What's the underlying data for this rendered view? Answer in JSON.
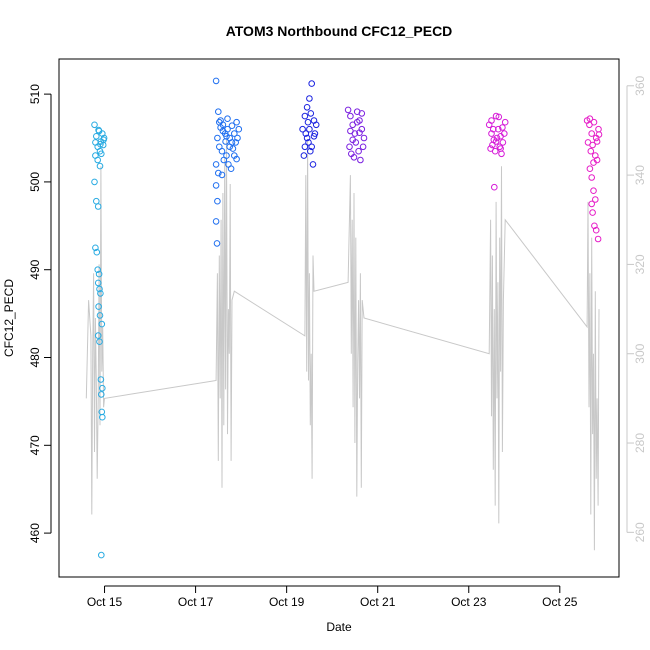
{
  "chart_data": {
    "type": "scatter",
    "title": "ATOM3 Northbound CFC12_PECD",
    "xlabel": "Date",
    "ylabel": "CFC12_PECD",
    "x_ticks": [
      "Oct 15",
      "Oct 17",
      "Oct 19",
      "Oct 21",
      "Oct 23",
      "Oct 25"
    ],
    "y_ticks": [
      460,
      470,
      480,
      490,
      500,
      510
    ],
    "y2_ticks": [
      260,
      280,
      300,
      320,
      340,
      360
    ],
    "xlim_days": [
      14.0,
      26.3
    ],
    "ylim": [
      455,
      514
    ],
    "y2lim": [
      250,
      366
    ],
    "colors": {
      "secondary_line": "#c8c8c8",
      "secondary_axis": "#c8c8c8"
    },
    "series": [
      {
        "color": "#29abe2",
        "points": [
          [
            14.78,
            506.5
          ],
          [
            14.8,
            504.5
          ],
          [
            14.82,
            505.2
          ],
          [
            14.85,
            504.0
          ],
          [
            14.88,
            505.8
          ],
          [
            14.9,
            503.5
          ],
          [
            14.92,
            504.6
          ],
          [
            14.95,
            505.5
          ],
          [
            14.97,
            504.2
          ],
          [
            14.8,
            503.0
          ],
          [
            14.85,
            502.5
          ],
          [
            14.9,
            501.8
          ],
          [
            14.93,
            503.2
          ],
          [
            14.78,
            500.0
          ],
          [
            14.82,
            497.8
          ],
          [
            14.86,
            497.2
          ],
          [
            14.8,
            492.5
          ],
          [
            14.83,
            492.0
          ],
          [
            14.85,
            490.0
          ],
          [
            14.88,
            489.5
          ],
          [
            14.86,
            488.5
          ],
          [
            14.89,
            487.8
          ],
          [
            14.91,
            487.3
          ],
          [
            14.87,
            485.8
          ],
          [
            14.9,
            484.8
          ],
          [
            14.94,
            483.8
          ],
          [
            14.86,
            482.5
          ],
          [
            14.89,
            481.8
          ],
          [
            14.92,
            477.5
          ],
          [
            14.95,
            476.5
          ],
          [
            14.93,
            475.8
          ],
          [
            14.94,
            473.8
          ],
          [
            14.95,
            473.2
          ],
          [
            14.93,
            457.5
          ],
          [
            14.98,
            504.8
          ],
          [
            14.99,
            505.0
          ],
          [
            14.87,
            505.9
          ],
          [
            14.91,
            504.3
          ]
        ]
      },
      {
        "color": "#1f6ff0",
        "points": [
          [
            17.45,
            511.5
          ],
          [
            17.5,
            508.0
          ],
          [
            17.55,
            507.0
          ],
          [
            17.6,
            506.5
          ],
          [
            17.65,
            505.5
          ],
          [
            17.7,
            506.0
          ],
          [
            17.75,
            505.0
          ],
          [
            17.8,
            504.5
          ],
          [
            17.85,
            505.5
          ],
          [
            17.9,
            506.8
          ],
          [
            17.95,
            506.0
          ],
          [
            17.48,
            505.0
          ],
          [
            17.52,
            504.0
          ],
          [
            17.58,
            503.5
          ],
          [
            17.62,
            502.5
          ],
          [
            17.68,
            503.0
          ],
          [
            17.72,
            502.0
          ],
          [
            17.78,
            501.5
          ],
          [
            17.82,
            503.8
          ],
          [
            17.88,
            504.5
          ],
          [
            17.45,
            502.0
          ],
          [
            17.5,
            501.0
          ],
          [
            17.45,
            499.6
          ],
          [
            17.48,
            497.8
          ],
          [
            17.45,
            495.5
          ],
          [
            17.47,
            493.0
          ],
          [
            17.55,
            506.2
          ],
          [
            17.7,
            507.2
          ],
          [
            17.85,
            503.0
          ],
          [
            17.92,
            505.0
          ],
          [
            17.6,
            505.8
          ],
          [
            17.75,
            504.0
          ],
          [
            17.52,
            506.8
          ],
          [
            17.66,
            504.6
          ],
          [
            17.8,
            506.4
          ],
          [
            17.9,
            502.6
          ],
          [
            17.58,
            500.8
          ],
          [
            17.68,
            505.2
          ]
        ]
      },
      {
        "color": "#1a22e0",
        "points": [
          [
            19.35,
            506.0
          ],
          [
            19.4,
            507.5
          ],
          [
            19.45,
            508.5
          ],
          [
            19.5,
            509.5
          ],
          [
            19.55,
            511.2
          ],
          [
            19.6,
            507.0
          ],
          [
            19.65,
            506.5
          ],
          [
            19.42,
            505.5
          ],
          [
            19.48,
            504.5
          ],
          [
            19.52,
            503.5
          ],
          [
            19.58,
            502.0
          ],
          [
            19.38,
            503.0
          ],
          [
            19.45,
            505.0
          ],
          [
            19.5,
            506.0
          ],
          [
            19.55,
            504.0
          ],
          [
            19.62,
            505.5
          ],
          [
            19.4,
            504.0
          ],
          [
            19.47,
            506.8
          ],
          [
            19.53,
            507.8
          ],
          [
            19.6,
            505.2
          ]
        ]
      },
      {
        "color": "#7a1fe0",
        "points": [
          [
            20.35,
            508.2
          ],
          [
            20.4,
            507.5
          ],
          [
            20.45,
            506.5
          ],
          [
            20.5,
            505.5
          ],
          [
            20.55,
            508.0
          ],
          [
            20.6,
            507.0
          ],
          [
            20.65,
            506.0
          ],
          [
            20.7,
            505.0
          ],
          [
            20.38,
            504.0
          ],
          [
            20.42,
            503.2
          ],
          [
            20.48,
            502.8
          ],
          [
            20.52,
            504.5
          ],
          [
            20.58,
            503.5
          ],
          [
            20.62,
            502.5
          ],
          [
            20.68,
            504.0
          ],
          [
            20.4,
            505.8
          ],
          [
            20.55,
            506.8
          ],
          [
            20.65,
            507.8
          ],
          [
            20.45,
            504.8
          ],
          [
            20.6,
            505.6
          ]
        ]
      },
      {
        "color": "#d61ad8",
        "points": [
          [
            23.45,
            506.5
          ],
          [
            23.5,
            505.5
          ],
          [
            23.55,
            504.8
          ],
          [
            23.6,
            507.5
          ],
          [
            23.65,
            506.0
          ],
          [
            23.7,
            505.2
          ],
          [
            23.75,
            504.5
          ],
          [
            23.8,
            506.8
          ],
          [
            23.48,
            503.8
          ],
          [
            23.52,
            504.2
          ],
          [
            23.58,
            503.5
          ],
          [
            23.62,
            505.0
          ],
          [
            23.68,
            504.0
          ],
          [
            23.72,
            503.2
          ],
          [
            23.78,
            505.5
          ],
          [
            23.56,
            499.4
          ],
          [
            23.5,
            507.0
          ],
          [
            23.66,
            507.4
          ],
          [
            23.74,
            506.2
          ],
          [
            23.6,
            504.6
          ],
          [
            23.54,
            506.0
          ],
          [
            23.7,
            503.8
          ]
        ]
      },
      {
        "color": "#e61ec8",
        "points": [
          [
            25.6,
            507.0
          ],
          [
            25.65,
            506.5
          ],
          [
            25.7,
            505.5
          ],
          [
            25.75,
            506.8
          ],
          [
            25.8,
            505.0
          ],
          [
            25.85,
            506.0
          ],
          [
            25.62,
            504.5
          ],
          [
            25.68,
            503.5
          ],
          [
            25.72,
            504.2
          ],
          [
            25.78,
            503.0
          ],
          [
            25.82,
            502.5
          ],
          [
            25.66,
            501.5
          ],
          [
            25.7,
            500.5
          ],
          [
            25.74,
            499.0
          ],
          [
            25.78,
            498.0
          ],
          [
            25.72,
            496.5
          ],
          [
            25.76,
            495.0
          ],
          [
            25.8,
            494.5
          ],
          [
            25.84,
            493.5
          ],
          [
            25.7,
            497.5
          ],
          [
            25.66,
            507.2
          ],
          [
            25.82,
            504.6
          ],
          [
            25.74,
            502.2
          ],
          [
            25.86,
            505.4
          ]
        ]
      }
    ],
    "secondary_series": {
      "axis": "right",
      "x": [
        14.6,
        14.65,
        14.7,
        14.72,
        14.74,
        14.76,
        14.78,
        14.8,
        14.82,
        14.84,
        14.86,
        14.88,
        14.9,
        14.92,
        14.94,
        14.96,
        14.98,
        15.0,
        17.45,
        17.48,
        17.5,
        17.52,
        17.54,
        17.56,
        17.58,
        17.6,
        17.62,
        17.64,
        17.66,
        17.68,
        17.7,
        17.72,
        17.74,
        17.76,
        17.78,
        17.8,
        17.85,
        19.4,
        19.42,
        19.44,
        19.46,
        19.48,
        19.5,
        19.52,
        19.54,
        19.56,
        19.58,
        19.6,
        20.35,
        20.4,
        20.42,
        20.44,
        20.46,
        20.48,
        20.5,
        20.52,
        20.54,
        20.56,
        20.58,
        20.6,
        20.62,
        20.64,
        20.66,
        20.7,
        23.45,
        23.48,
        23.5,
        23.52,
        23.54,
        23.56,
        23.58,
        23.6,
        23.62,
        23.64,
        23.66,
        23.68,
        23.7,
        23.72,
        23.74,
        23.76,
        23.8,
        25.6,
        25.62,
        25.64,
        25.66,
        25.68,
        25.7,
        25.72,
        25.74,
        25.76,
        25.78,
        25.8,
        25.82,
        25.84,
        25.86
      ],
      "y": [
        290,
        312,
        304,
        264,
        300,
        318,
        278,
        308,
        294,
        272,
        290,
        320,
        284,
        342,
        296,
        306,
        288,
        290,
        294,
        318,
        276,
        322,
        290,
        330,
        270,
        336,
        284,
        344,
        292,
        348,
        282,
        310,
        300,
        338,
        276,
        312,
        314,
        304,
        340,
        296,
        348,
        294,
        318,
        284,
        300,
        272,
        322,
        314,
        316,
        340,
        300,
        330,
        288,
        336,
        280,
        326,
        268,
        298,
        312,
        290,
        318,
        270,
        312,
        308,
        300,
        330,
        286,
        322,
        274,
        310,
        266,
        334,
        290,
        316,
        262,
        326,
        296,
        342,
        278,
        312,
        330,
        306,
        334,
        288,
        318,
        264,
        326,
        282,
        300,
        256,
        314,
        272,
        290,
        266,
        310
      ]
    }
  }
}
